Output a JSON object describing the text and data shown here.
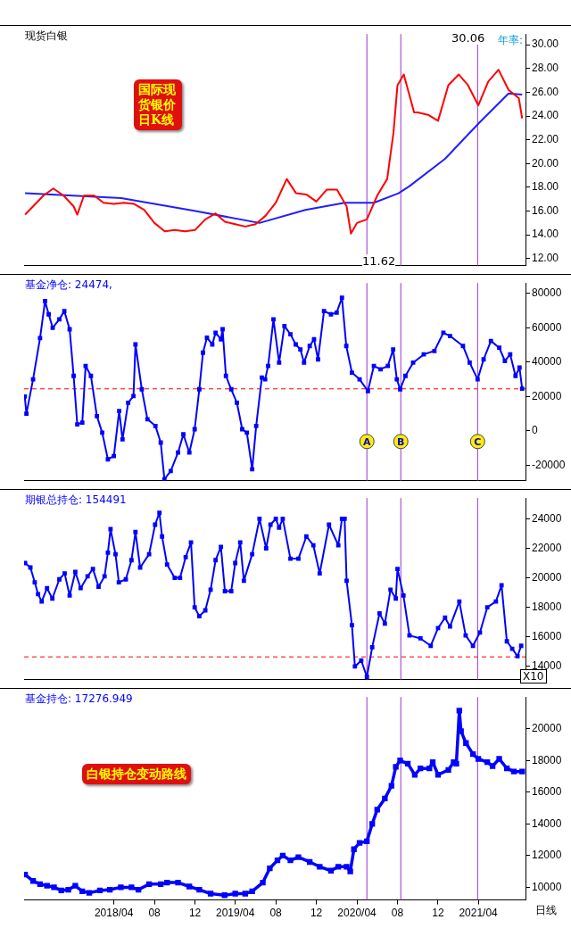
{
  "chart_data": [
    {
      "type": "line",
      "title": "现货白银",
      "xlim": [
        "2017-07-05",
        "2021-08-21"
      ],
      "ylim": [
        11.4,
        30.9
      ],
      "yticks": [
        {
          "value": 12,
          "label": "12.00"
        },
        {
          "value": 14,
          "label": "14.00"
        },
        {
          "value": 16,
          "label": "16.00"
        },
        {
          "value": 18,
          "label": "18.00"
        },
        {
          "value": 20,
          "label": "20.00"
        },
        {
          "value": 22,
          "label": "22.00"
        },
        {
          "value": 24,
          "label": "24.00"
        },
        {
          "value": 26,
          "label": "26.00"
        },
        {
          "value": 28,
          "label": "28.00"
        },
        {
          "value": 30,
          "label": "30.00"
        }
      ],
      "tick_labels": "y",
      "marker": "none",
      "series": [
        {
          "color": "#ff0000",
          "x": [
            "2017-07-08",
            "2017-08-01",
            "2017-09-01",
            "2017-10-01",
            "2017-11-01",
            "2017-12-01",
            "2017-12-12",
            "2018-01-01",
            "2018-02-01",
            "2018-03-01",
            "2018-04-01",
            "2018-05-01",
            "2018-06-01",
            "2018-07-01",
            "2018-08-01",
            "2018-09-01",
            "2018-10-01",
            "2018-11-01",
            "2018-12-01",
            "2019-01-01",
            "2019-02-01",
            "2019-03-01",
            "2019-04-01",
            "2019-05-01",
            "2019-06-01",
            "2019-07-01",
            "2019-08-01",
            "2019-09-03",
            "2019-10-01",
            "2019-11-01",
            "2019-12-01",
            "2020-01-01",
            "2020-02-01",
            "2020-03-01",
            "2020-03-14",
            "2020-04-01",
            "2020-05-01",
            "2020-06-01",
            "2020-07-01",
            "2020-07-20",
            "2020-08-01",
            "2020-08-20",
            "2020-09-20",
            "2020-10-01",
            "2020-11-01",
            "2020-12-01",
            "2021-01-01",
            "2021-02-01",
            "2021-03-01",
            "2021-04-01",
            "2021-05-01",
            "2021-06-01",
            "2021-07-01",
            "2021-08-01",
            "2021-08-11"
          ],
          "values": [
            15.7,
            16.4,
            17.3,
            17.9,
            17.3,
            16.4,
            15.7,
            17.3,
            17.3,
            16.7,
            16.6,
            16.7,
            16.6,
            16.1,
            15.0,
            14.3,
            14.4,
            14.3,
            14.4,
            15.3,
            15.8,
            15.1,
            14.9,
            14.7,
            14.9,
            15.6,
            16.7,
            18.7,
            17.5,
            17.4,
            16.8,
            17.8,
            17.8,
            16.4,
            14.1,
            15.0,
            15.3,
            17.3,
            18.7,
            22.6,
            26.6,
            27.5,
            24.3,
            24.3,
            24.1,
            23.6,
            26.6,
            27.5,
            26.6,
            24.9,
            26.9,
            27.9,
            26.2,
            25.5,
            23.8
          ]
        },
        {
          "color": "#1f1fff",
          "x": [
            "2017-07-08",
            "2018-04-23",
            "2018-12-03",
            "2019-06-13",
            "2019-10-29",
            "2020-02-24",
            "2020-05-22",
            "2020-08-04",
            "2020-09-06",
            "2020-12-22",
            "2021-04-06",
            "2021-07-01",
            "2021-08-11"
          ],
          "values": [
            17.5,
            17.1,
            16.0,
            15.0,
            16.1,
            16.7,
            16.7,
            17.5,
            18.1,
            20.4,
            23.5,
            25.9,
            25.8
          ]
        }
      ],
      "ref_lines": [
        {
          "axis": "x",
          "value": "2020-05-01",
          "color": "#9933cc"
        },
        {
          "axis": "x",
          "value": "2020-08-11",
          "color": "#9933cc"
        },
        {
          "axis": "x",
          "value": "2021-03-30",
          "color": "#9933cc"
        }
      ],
      "annotations": [
        "国际现货银价日K线",
        "年率:",
        "30.06",
        "11.62"
      ]
    },
    {
      "type": "line",
      "title": "基金净仓: 24474,",
      "xlim": [
        "2017-07-05",
        "2021-08-21"
      ],
      "ylim": [
        -29000,
        86000
      ],
      "yticks": [
        -20000,
        0,
        20000,
        40000,
        60000,
        80000
      ],
      "tick_labels": "y",
      "marker": "square",
      "x": [
        "2017-07-07",
        "2017-07-12",
        "2017-08-01",
        "2017-08-22",
        "2017-09-06",
        "2017-09-17",
        "2017-09-29",
        "2017-10-19",
        "2017-11-03",
        "2017-11-19",
        "2017-12-01",
        "2017-12-12",
        "2017-12-27",
        "2018-01-06",
        "2018-01-22",
        "2018-02-09",
        "2018-02-25",
        "2018-03-14",
        "2018-04-01",
        "2018-04-17",
        "2018-04-27",
        "2018-05-14",
        "2018-05-30",
        "2018-06-05",
        "2018-06-24",
        "2018-07-11",
        "2018-08-04",
        "2018-08-20",
        "2018-08-31",
        "2018-09-19",
        "2018-10-11",
        "2018-10-27",
        "2018-11-14",
        "2018-11-30",
        "2018-12-14",
        "2018-12-25",
        "2019-01-06",
        "2019-01-22",
        "2019-02-01",
        "2019-02-17",
        "2019-02-22",
        "2019-03-04",
        "2019-03-20",
        "2019-04-06",
        "2019-04-22",
        "2019-05-06",
        "2019-05-22",
        "2019-06-03",
        "2019-06-20",
        "2019-06-30",
        "2019-07-09",
        "2019-07-25",
        "2019-08-11",
        "2019-08-27",
        "2019-09-14",
        "2019-09-30",
        "2019-10-14",
        "2019-10-25",
        "2019-11-11",
        "2019-11-24",
        "2019-12-06",
        "2019-12-24",
        "2020-01-14",
        "2020-01-31",
        "2020-02-16",
        "2020-02-29",
        "2020-03-17",
        "2020-04-09",
        "2020-05-04",
        "2020-05-22",
        "2020-06-11",
        "2020-07-03",
        "2020-07-19",
        "2020-07-30",
        "2020-08-09",
        "2020-08-25",
        "2020-09-17",
        "2020-10-19",
        "2020-11-20",
        "2020-12-17",
        "2021-01-06",
        "2021-02-14",
        "2021-03-06",
        "2021-03-30",
        "2021-04-17",
        "2021-05-09",
        "2021-06-03",
        "2021-06-20",
        "2021-07-06",
        "2021-07-22",
        "2021-08-03",
        "2021-08-11"
      ],
      "series": [
        {
          "color": "#0000ff",
          "values": [
            20000,
            10000,
            30000,
            54000,
            75500,
            67800,
            60000,
            64900,
            69700,
            59100,
            32000,
            3800,
            4800,
            37800,
            32000,
            8600,
            -1000,
            -16500,
            -14600,
            11600,
            -4900,
            16400,
            20300,
            50300,
            24200,
            6800,
            2900,
            -6800,
            -28100,
            -23300,
            -12600,
            -2000,
            -12600,
            1000,
            24200,
            45500,
            54200,
            50300,
            57100,
            53300,
            59100,
            32000,
            24200,
            16400,
            1000,
            -1000,
            -22300,
            2900,
            31000,
            30000,
            37800,
            64900,
            39700,
            61000,
            56200,
            50300,
            47400,
            39700,
            49400,
            53300,
            41600,
            69700,
            67800,
            68800,
            77500,
            49400,
            33900,
            30000,
            23200,
            37800,
            35800,
            37800,
            47400,
            30000,
            24200,
            32000,
            39700,
            44500,
            46500,
            57100,
            55200,
            49400,
            39700,
            30000,
            41600,
            52300,
            48400,
            40700,
            44500,
            32000,
            36800,
            24500
          ]
        }
      ],
      "ref_lines": [
        {
          "axis": "y",
          "value": 24474,
          "color": "#ff0000",
          "line_style": "dashed"
        },
        {
          "axis": "x",
          "value": "2020-05-01",
          "label": "A",
          "color": "#9933cc"
        },
        {
          "axis": "x",
          "value": "2020-08-11",
          "label": "B",
          "color": "#9933cc"
        },
        {
          "axis": "x",
          "value": "2021-03-30",
          "label": "C",
          "color": "#9933cc"
        }
      ]
    },
    {
      "type": "line",
      "title": "期银总持仓: 154491",
      "xlim": [
        "2017-07-05",
        "2021-08-21"
      ],
      "ylim": [
        13100,
        25400
      ],
      "yticks": [
        14000,
        16000,
        18000,
        20000,
        22000,
        24000
      ],
      "tick_labels": "y",
      "marker": "square",
      "x": [
        "2017-07-08",
        "2017-07-24",
        "2017-08-06",
        "2017-08-16",
        "2017-08-27",
        "2017-09-12",
        "2017-09-28",
        "2017-10-19",
        "2017-11-04",
        "2017-11-19",
        "2017-12-06",
        "2017-12-22",
        "2018-01-12",
        "2018-01-28",
        "2018-02-14",
        "2018-03-04",
        "2018-03-14",
        "2018-03-22",
        "2018-04-06",
        "2018-04-16",
        "2018-05-07",
        "2018-05-24",
        "2018-06-05",
        "2018-06-19",
        "2018-07-16",
        "2018-08-03",
        "2018-08-16",
        "2018-08-24",
        "2018-09-08",
        "2018-10-01",
        "2018-10-17",
        "2018-11-03",
        "2018-11-19",
        "2018-11-30",
        "2018-12-14",
        "2019-01-01",
        "2019-01-17",
        "2019-02-01",
        "2019-02-17",
        "2019-03-01",
        "2019-03-20",
        "2019-04-01",
        "2019-04-16",
        "2019-04-27",
        "2019-05-22",
        "2019-06-13",
        "2019-07-03",
        "2019-07-16",
        "2019-08-01",
        "2019-08-11",
        "2019-08-22",
        "2019-09-14",
        "2019-10-08",
        "2019-11-01",
        "2019-11-22",
        "2019-12-11",
        "2020-01-08",
        "2020-02-05",
        "2020-02-16",
        "2020-02-24",
        "2020-03-01",
        "2020-03-17",
        "2020-03-26",
        "2020-04-14",
        "2020-05-01",
        "2020-05-17",
        "2020-06-08",
        "2020-06-24",
        "2020-07-11",
        "2020-07-27",
        "2020-08-01",
        "2020-08-19",
        "2020-09-06",
        "2020-10-09",
        "2020-11-09",
        "2020-12-01",
        "2020-12-22",
        "2021-01-06",
        "2021-02-03",
        "2021-02-22",
        "2021-03-16",
        "2021-04-06",
        "2021-04-28",
        "2021-05-24",
        "2021-06-10",
        "2021-06-26",
        "2021-07-12",
        "2021-07-28",
        "2021-08-08"
      ],
      "series": [
        {
          "color": "#0000ff",
          "values": [
            21000,
            20700,
            19700,
            18900,
            18400,
            19300,
            18600,
            19900,
            20300,
            18800,
            20400,
            19300,
            20100,
            20600,
            19400,
            20100,
            21700,
            23300,
            21600,
            19700,
            19900,
            21200,
            23100,
            20700,
            21600,
            23600,
            24400,
            22800,
            20900,
            20000,
            20000,
            21400,
            22400,
            18000,
            17400,
            17800,
            19200,
            21200,
            22100,
            19100,
            19100,
            21000,
            22400,
            19800,
            21600,
            24000,
            22000,
            23600,
            24000,
            23400,
            24000,
            21300,
            21300,
            22800,
            22200,
            20300,
            23600,
            22200,
            24000,
            24000,
            19800,
            16800,
            14000,
            14400,
            13300,
            15300,
            17600,
            16900,
            19200,
            18600,
            20600,
            18800,
            16100,
            15900,
            15400,
            16600,
            17300,
            16700,
            18400,
            16100,
            15400,
            16300,
            18000,
            18400,
            19500,
            15700,
            15200,
            14700,
            15400
          ]
        }
      ],
      "ref_lines": [
        {
          "axis": "y",
          "value": 14650,
          "color": "#ff0000",
          "line_style": "dashed"
        },
        {
          "axis": "x",
          "value": "2020-05-01",
          "color": "#9933cc"
        },
        {
          "axis": "x",
          "value": "2020-08-11",
          "color": "#9933cc"
        },
        {
          "axis": "x",
          "value": "2021-03-30",
          "color": "#9933cc"
        }
      ],
      "annotations": [
        "X10"
      ]
    },
    {
      "type": "line",
      "title": "基金持仓: 17276.949",
      "xlim": [
        "2017-07-05",
        "2021-08-21"
      ],
      "xticks": [
        {
          "value": "2018-04-01",
          "label": "2018/04"
        },
        {
          "value": "2018-08-01",
          "label": "08"
        },
        {
          "value": "2018-12-01",
          "label": "12"
        },
        {
          "value": "2019-04-01",
          "label": "2019/04"
        },
        {
          "value": "2019-08-01",
          "label": "08"
        },
        {
          "value": "2019-12-01",
          "label": "12"
        },
        {
          "value": "2020-04-01",
          "label": "2020/04"
        },
        {
          "value": "2020-08-01",
          "label": "08"
        },
        {
          "value": "2020-12-01",
          "label": "12"
        },
        {
          "value": "2021-04-01",
          "label": "2021/04"
        }
      ],
      "ylim": [
        9200,
        22000
      ],
      "yticks": [
        10000,
        12000,
        14000,
        16000,
        18000,
        20000
      ],
      "marker": "square",
      "x": [
        "2017-07-08",
        "2017-08-01",
        "2017-08-22",
        "2017-09-12",
        "2017-10-03",
        "2017-10-25",
        "2017-11-15",
        "2017-12-06",
        "2017-12-27",
        "2018-01-17",
        "2018-02-18",
        "2018-03-20",
        "2018-04-22",
        "2018-05-24",
        "2018-06-14",
        "2018-07-16",
        "2018-08-20",
        "2018-09-08",
        "2018-10-11",
        "2018-11-14",
        "2018-12-14",
        "2019-01-17",
        "2019-02-28",
        "2019-04-01",
        "2019-05-01",
        "2019-05-22",
        "2019-06-23",
        "2019-07-14",
        "2019-08-06",
        "2019-08-22",
        "2019-09-14",
        "2019-10-08",
        "2019-11-11",
        "2019-12-11",
        "2020-01-14",
        "2020-02-05",
        "2020-03-01",
        "2020-03-12",
        "2020-03-23",
        "2020-04-09",
        "2020-05-01",
        "2020-05-17",
        "2020-06-01",
        "2020-06-24",
        "2020-07-14",
        "2020-07-27",
        "2020-08-09",
        "2020-09-01",
        "2020-09-22",
        "2020-10-09",
        "2020-11-05",
        "2020-11-15",
        "2020-12-01",
        "2021-01-01",
        "2021-01-17",
        "2021-01-25",
        "2021-02-03",
        "2021-02-08",
        "2021-02-23",
        "2021-03-16",
        "2021-04-01",
        "2021-04-28",
        "2021-05-14",
        "2021-06-03",
        "2021-06-26",
        "2021-07-17",
        "2021-08-11"
      ],
      "series": [
        {
          "color": "#0000ff",
          "values": [
            10800,
            10400,
            10200,
            10100,
            10000,
            9800,
            9850,
            10100,
            9750,
            9650,
            9800,
            9850,
            10000,
            10000,
            9850,
            10200,
            10200,
            10300,
            10300,
            10050,
            9850,
            9600,
            9500,
            9600,
            9600,
            9750,
            10300,
            11200,
            11700,
            12000,
            11700,
            11900,
            11600,
            11300,
            11050,
            11300,
            11300,
            11000,
            12400,
            12800,
            12900,
            14000,
            14900,
            15600,
            16400,
            17600,
            18000,
            17800,
            17100,
            17500,
            17500,
            17900,
            17100,
            17400,
            17900,
            17800,
            21150,
            19850,
            19100,
            18400,
            18100,
            17900,
            17650,
            18100,
            17500,
            17300,
            17300
          ]
        }
      ],
      "ref_lines": [
        {
          "axis": "x",
          "value": "2020-05-01",
          "color": "#9933cc"
        },
        {
          "axis": "x",
          "value": "2020-08-11",
          "color": "#9933cc"
        },
        {
          "axis": "x",
          "value": "2021-03-30",
          "color": "#9933cc"
        }
      ],
      "annotations": [
        "白银持仓变动路线",
        "日线"
      ]
    }
  ]
}
